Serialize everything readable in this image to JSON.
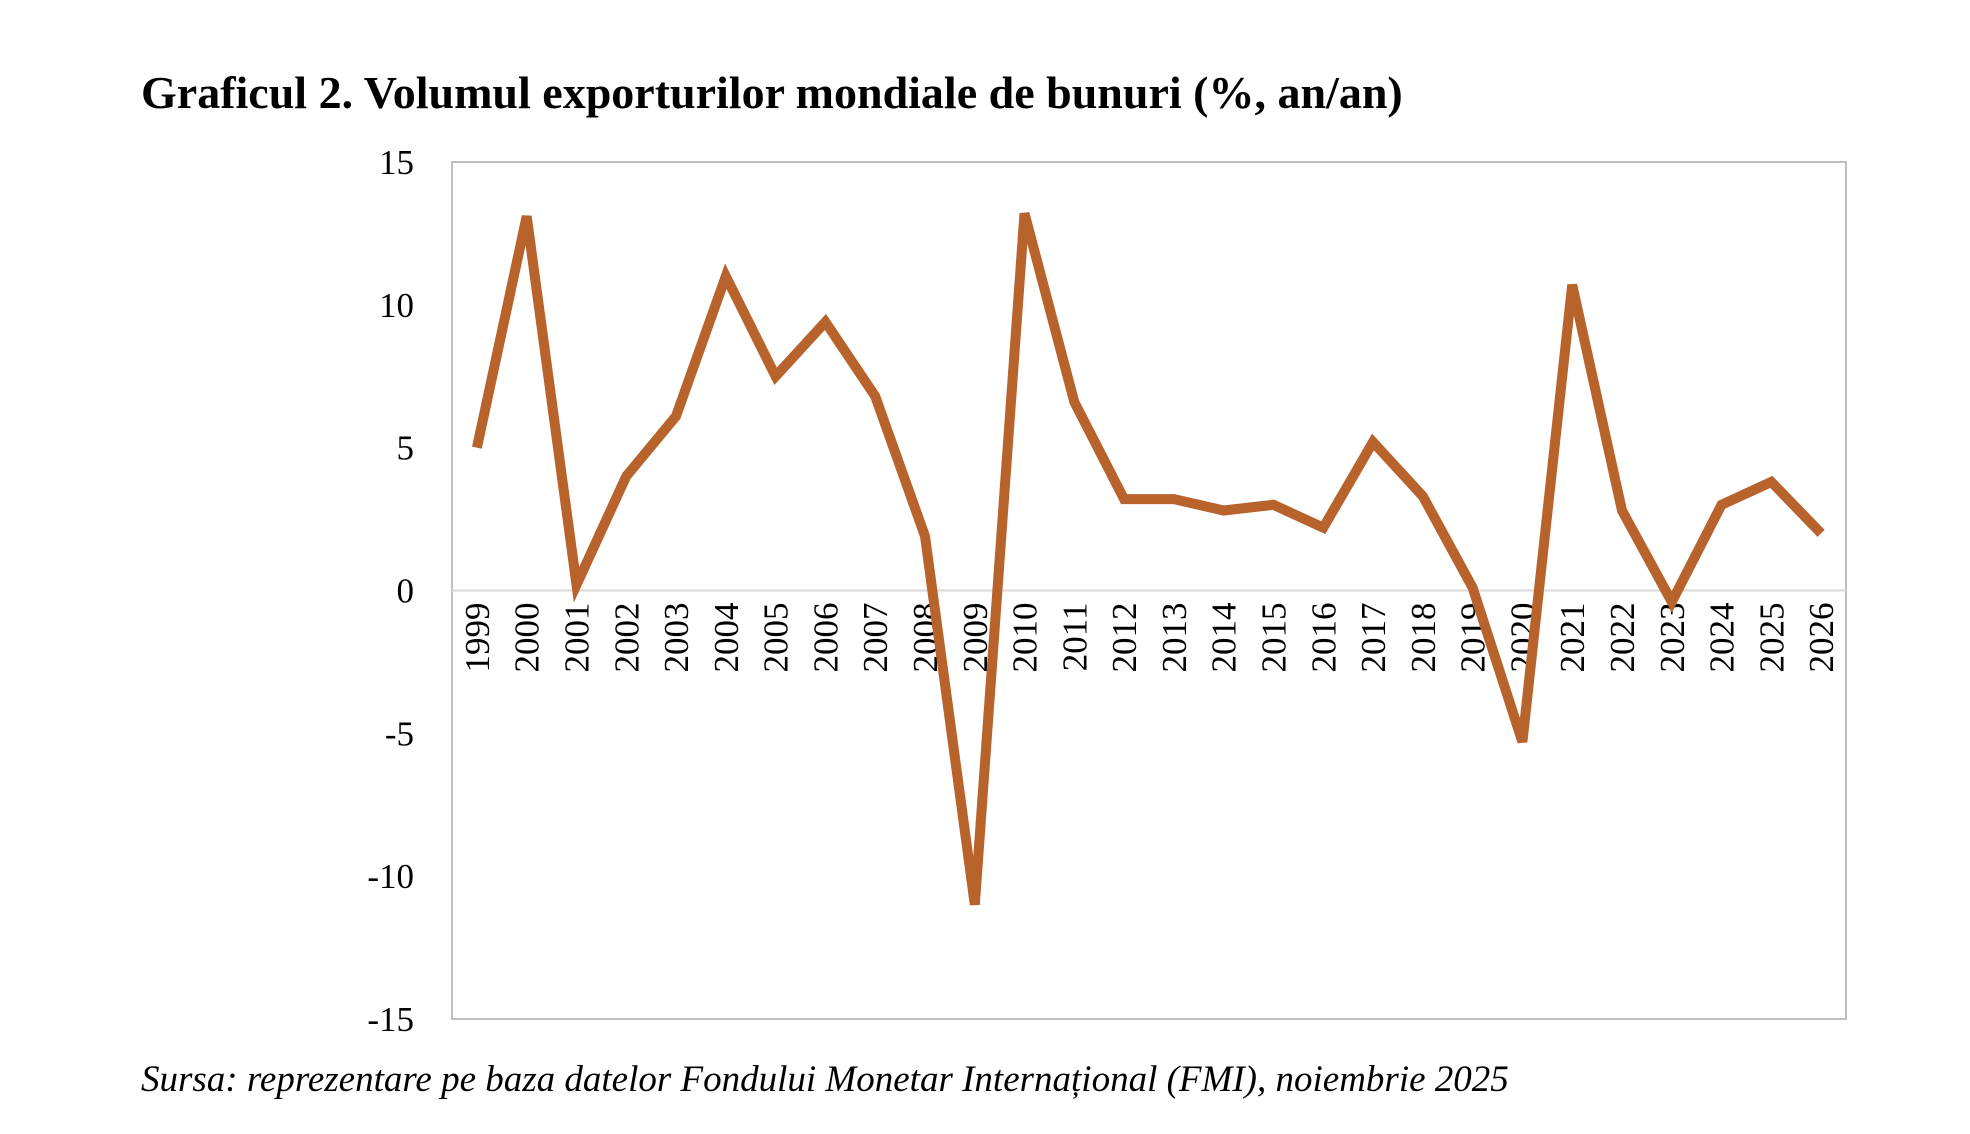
{
  "chart_data": {
    "type": "line",
    "title": "Graficul 2. Volumul exporturilor mondiale de bunuri (%, an/an)",
    "source": "Sursa: reprezentare pe baza datelor Fondului Monetar Internațional (FMI), noiembrie 2025",
    "xlabel": "",
    "ylabel": "",
    "ylim": [
      -15,
      15
    ],
    "yticks": [
      15,
      10,
      5,
      0,
      -5,
      -10,
      -15
    ],
    "grid": false,
    "legend": "none",
    "color": "#B8622C",
    "categories": [
      "1999",
      "2000",
      "2001",
      "2002",
      "2003",
      "2004",
      "2005",
      "2006",
      "2007",
      "2008",
      "2009",
      "2010",
      "2011",
      "2012",
      "2013",
      "2014",
      "2015",
      "2016",
      "2017",
      "2018",
      "2019",
      "2020",
      "2021",
      "2022",
      "2023",
      "2024",
      "2025",
      "2026"
    ],
    "series": [
      {
        "values": [
          5.0,
          13.1,
          0.2,
          4.0,
          6.1,
          11.0,
          7.5,
          9.4,
          6.8,
          1.9,
          -11.0,
          13.2,
          6.6,
          3.2,
          3.2,
          2.8,
          3.0,
          2.2,
          5.2,
          3.3,
          0.1,
          -5.3,
          10.7,
          2.8,
          -0.4,
          3.0,
          3.8,
          2.0
        ]
      }
    ]
  }
}
